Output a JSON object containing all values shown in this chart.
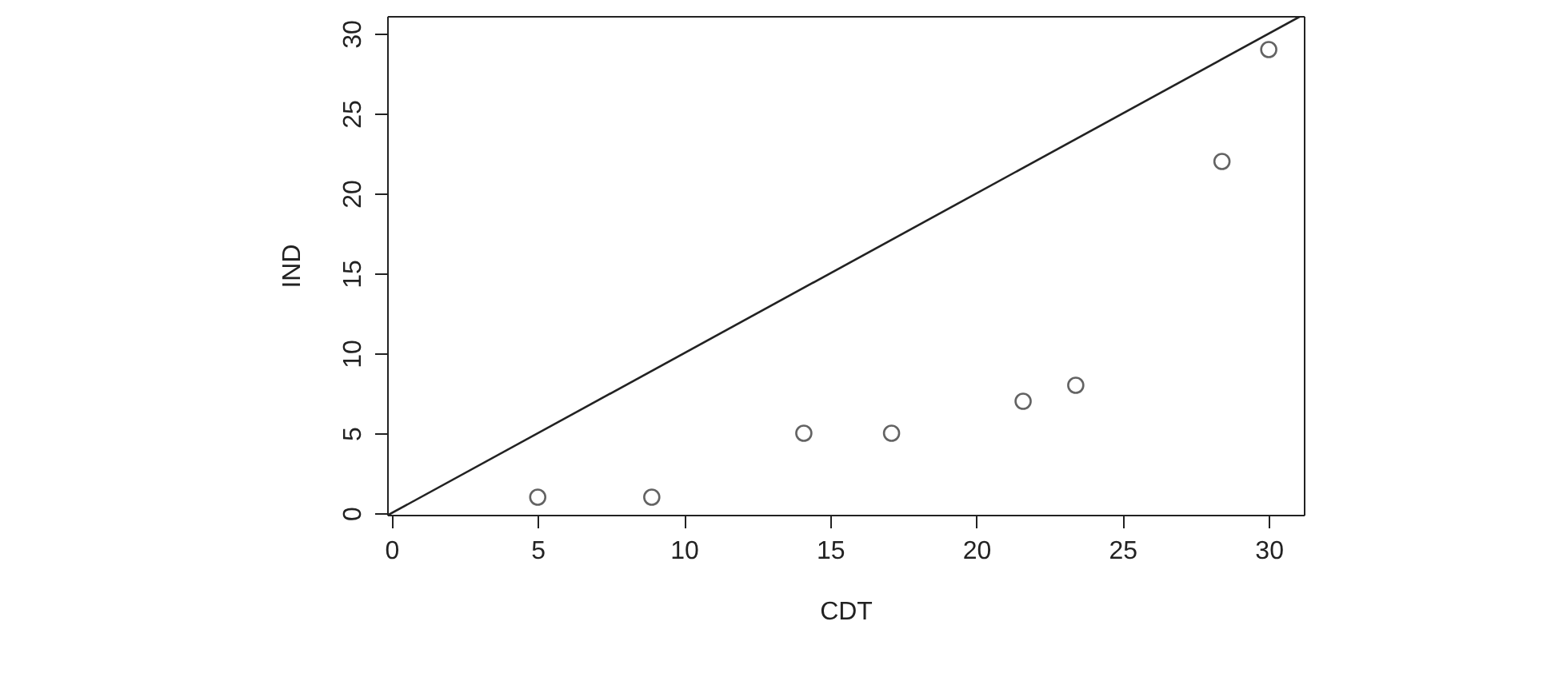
{
  "chart_data": {
    "type": "scatter",
    "xlabel": "CDT",
    "ylabel": "IND",
    "series": [
      {
        "color": "#222222",
        "marker": "circle",
        "x": [
          5,
          8.9,
          14.1,
          17.1,
          21.6,
          23.4,
          28.4,
          30
        ],
        "values": [
          1,
          1,
          5,
          5,
          7,
          8,
          22,
          29
        ]
      },
      {
        "type": "line",
        "marker": "none",
        "color": "#222222",
        "x": [
          -0.1,
          31.1
        ],
        "values": [
          -0.1,
          31.1
        ]
      }
    ],
    "grid": false,
    "xlim": [
      -0.15,
      31.2
    ],
    "ylim": [
      -0.1,
      31.1
    ],
    "xticks": [
      0,
      5,
      10,
      15,
      20,
      25,
      30
    ],
    "yticks": [
      0,
      5,
      10,
      15,
      20,
      25,
      30
    ]
  }
}
